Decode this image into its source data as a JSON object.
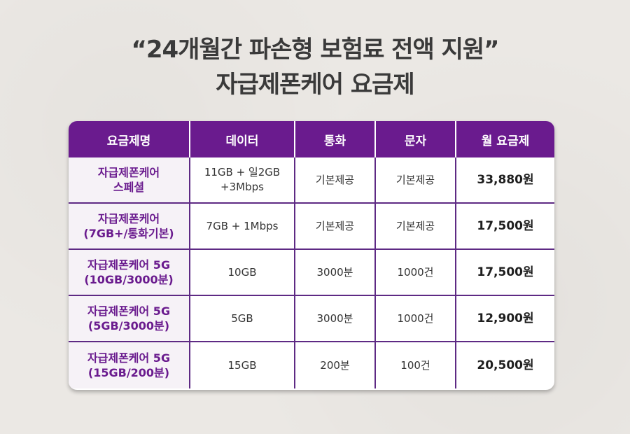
{
  "headline": {
    "line1": "“24개월간 파손형 보험료 전액 지원”",
    "line2": "자급제폰케어 요금제"
  },
  "table": {
    "headers": [
      "요금제명",
      "데이터",
      "통화",
      "문자",
      "월 요금제"
    ],
    "rows": [
      {
        "plan": [
          "자급제폰케어",
          "스페셜"
        ],
        "data": [
          "11GB + 일2GB",
          "+3Mbps"
        ],
        "call": "기본제공",
        "sms": "기본제공",
        "fee": "33,880원"
      },
      {
        "plan": [
          "자급제폰케어",
          "(7GB+/통화기본)"
        ],
        "data": [
          "7GB + 1Mbps"
        ],
        "call": "기본제공",
        "sms": "기본제공",
        "fee": "17,500원"
      },
      {
        "plan": [
          "자급제폰케어 5G",
          "(10GB/3000분)"
        ],
        "data": [
          "10GB"
        ],
        "call": "3000분",
        "sms": "1000건",
        "fee": "17,500원"
      },
      {
        "plan": [
          "자급제폰케어 5G",
          "(5GB/3000분)"
        ],
        "data": [
          "5GB"
        ],
        "call": "3000분",
        "sms": "1000건",
        "fee": "12,900원"
      },
      {
        "plan": [
          "자급제폰케어 5G",
          "(15GB/200분)"
        ],
        "data": [
          "15GB"
        ],
        "call": "200분",
        "sms": "100건",
        "fee": "20,500원"
      }
    ]
  }
}
